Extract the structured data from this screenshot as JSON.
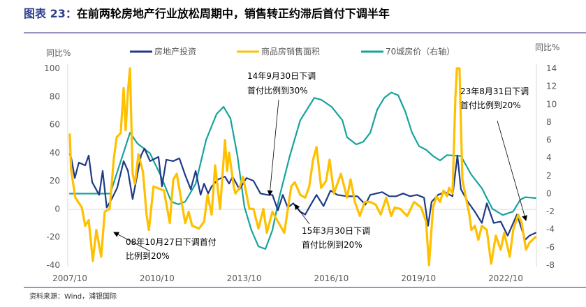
{
  "title": {
    "prefix": "图表 23：",
    "text": "在前两轮房地产行业放松周期中，销售转正约滞后首付下调半年"
  },
  "source": "资料来源：Wind，浦银国际",
  "colors": {
    "investment": "#1f3a86",
    "sales": "#ffc000",
    "price": "#17a39b",
    "title_prefix": "#2e3f8f",
    "rule": "#7b6fae"
  },
  "chart_data": {
    "type": "line",
    "title": "在前两轮房地产行业放松周期中，销售转正约滞后首付下调半年",
    "ylabel": "同比%",
    "ylabel_right": "同比%",
    "ylim": [
      -40,
      100
    ],
    "ylim_right": [
      -8,
      14
    ],
    "xlim": [
      2007.75,
      2023.85
    ],
    "xticks": [
      {
        "x": 2007.75,
        "label": "2007/10"
      },
      {
        "x": 2010.75,
        "label": "2010/10"
      },
      {
        "x": 2013.75,
        "label": "2013/10"
      },
      {
        "x": 2016.75,
        "label": "2016/10"
      },
      {
        "x": 2019.75,
        "label": "2019/10"
      },
      {
        "x": 2022.75,
        "label": "2022/10"
      }
    ],
    "yticks": [
      "100",
      "80",
      "60",
      "40",
      "20",
      "0",
      "-20",
      "-40"
    ],
    "yticks_right": [
      "14",
      "12",
      "10",
      "8",
      "6",
      "4",
      "2",
      "0",
      "-2",
      "-4",
      "-6",
      "-8"
    ],
    "legend_position": "top",
    "series": [
      {
        "name": "房地产投资",
        "axis": "left",
        "color": "#1f3a86",
        "points": [
          [
            2007.75,
            39
          ],
          [
            2007.8,
            36
          ],
          [
            2007.92,
            22
          ],
          [
            2008.06,
            33
          ],
          [
            2008.28,
            31
          ],
          [
            2008.4,
            38
          ],
          [
            2008.52,
            19
          ],
          [
            2008.76,
            10
          ],
          [
            2008.88,
            27
          ],
          [
            2009.02,
            1
          ],
          [
            2009.19,
            7
          ],
          [
            2009.38,
            15
          ],
          [
            2009.6,
            34
          ],
          [
            2009.75,
            27
          ],
          [
            2009.91,
            7
          ],
          [
            2010.2,
            38
          ],
          [
            2010.32,
            43
          ],
          [
            2010.51,
            34
          ],
          [
            2010.8,
            37
          ],
          [
            2010.92,
            16
          ],
          [
            2011.07,
            35
          ],
          [
            2011.31,
            34
          ],
          [
            2011.52,
            36
          ],
          [
            2011.72,
            24
          ],
          [
            2011.91,
            14
          ],
          [
            2012.08,
            27
          ],
          [
            2012.25,
            10
          ],
          [
            2012.37,
            18
          ],
          [
            2012.51,
            11
          ],
          [
            2012.63,
            16
          ],
          [
            2012.85,
            21
          ],
          [
            2013.09,
            23
          ],
          [
            2013.23,
            18
          ],
          [
            2013.35,
            23
          ],
          [
            2013.59,
            14
          ],
          [
            2013.83,
            22
          ],
          [
            2014.07,
            20
          ],
          [
            2014.31,
            11
          ],
          [
            2014.55,
            10
          ],
          [
            2014.72,
            10
          ],
          [
            2014.91,
            -1
          ],
          [
            2015.08,
            10
          ],
          [
            2015.25,
            1
          ],
          [
            2015.44,
            4
          ],
          [
            2015.68,
            -2
          ],
          [
            2015.85,
            -4
          ],
          [
            2016.04,
            3
          ],
          [
            2016.24,
            10
          ],
          [
            2016.48,
            2
          ],
          [
            2016.72,
            13
          ],
          [
            2016.96,
            10
          ],
          [
            2017.29,
            9
          ],
          [
            2017.65,
            9
          ],
          [
            2017.92,
            3
          ],
          [
            2018.09,
            10
          ],
          [
            2018.5,
            12
          ],
          [
            2018.74,
            9
          ],
          [
            2018.98,
            9
          ],
          [
            2019.22,
            11
          ],
          [
            2019.46,
            9
          ],
          [
            2019.7,
            10
          ],
          [
            2019.94,
            8
          ],
          [
            2020.08,
            -12
          ],
          [
            2020.2,
            5
          ],
          [
            2020.42,
            10
          ],
          [
            2020.66,
            12
          ],
          [
            2020.92,
            9
          ],
          [
            2021.09,
            38
          ],
          [
            2021.21,
            14
          ],
          [
            2021.45,
            5
          ],
          [
            2021.69,
            -2
          ],
          [
            2021.93,
            -10
          ],
          [
            2022.1,
            4
          ],
          [
            2022.34,
            -10
          ],
          [
            2022.58,
            -9
          ],
          [
            2022.82,
            -19
          ],
          [
            2023.14,
            -4
          ],
          [
            2023.42,
            -22
          ],
          [
            2023.57,
            -19
          ],
          [
            2023.78,
            -17
          ]
        ]
      },
      {
        "name": "商品房销售面积",
        "axis": "left",
        "color": "#ffc000",
        "points": [
          [
            2007.75,
            53
          ],
          [
            2007.79,
            28
          ],
          [
            2007.94,
            8
          ],
          [
            2008.16,
            1
          ],
          [
            2008.28,
            -12
          ],
          [
            2008.4,
            -8
          ],
          [
            2008.54,
            -37
          ],
          [
            2008.66,
            -15
          ],
          [
            2008.83,
            -34
          ],
          [
            2008.95,
            -2
          ],
          [
            2009.12,
            0
          ],
          [
            2009.26,
            35
          ],
          [
            2009.36,
            51
          ],
          [
            2009.5,
            54
          ],
          [
            2009.6,
            86
          ],
          [
            2009.67,
            56
          ],
          [
            2009.75,
            84
          ],
          [
            2009.82,
            100
          ],
          [
            2009.91,
            25
          ],
          [
            2009.99,
            18
          ],
          [
            2010.11,
            39
          ],
          [
            2010.27,
            26
          ],
          [
            2010.39,
            -4
          ],
          [
            2010.47,
            -15
          ],
          [
            2010.63,
            16
          ],
          [
            2010.99,
            13
          ],
          [
            2011.19,
            -10
          ],
          [
            2011.31,
            21
          ],
          [
            2011.43,
            25
          ],
          [
            2011.72,
            -10
          ],
          [
            2011.84,
            -2
          ],
          [
            2011.96,
            -12
          ],
          [
            2012.2,
            -14
          ],
          [
            2012.37,
            -9
          ],
          [
            2012.49,
            10
          ],
          [
            2012.63,
            -4
          ],
          [
            2012.75,
            31
          ],
          [
            2012.92,
            0
          ],
          [
            2013.09,
            49
          ],
          [
            2013.16,
            27
          ],
          [
            2013.23,
            40
          ],
          [
            2013.4,
            15
          ],
          [
            2013.45,
            11
          ],
          [
            2013.59,
            15
          ],
          [
            2013.71,
            23
          ],
          [
            2013.93,
            0
          ],
          [
            2014.07,
            0
          ],
          [
            2014.24,
            -14
          ],
          [
            2014.41,
            0
          ],
          [
            2014.53,
            -17
          ],
          [
            2014.72,
            -2
          ],
          [
            2014.91,
            -9
          ],
          [
            2015.13,
            -17
          ],
          [
            2015.37,
            16
          ],
          [
            2015.49,
            19
          ],
          [
            2015.68,
            10
          ],
          [
            2015.85,
            8
          ],
          [
            2015.99,
            16
          ],
          [
            2016.12,
            35
          ],
          [
            2016.24,
            44
          ],
          [
            2016.4,
            15
          ],
          [
            2016.57,
            20
          ],
          [
            2016.69,
            35
          ],
          [
            2016.84,
            11
          ],
          [
            2017.08,
            25
          ],
          [
            2017.29,
            8
          ],
          [
            2017.41,
            21
          ],
          [
            2017.56,
            5
          ],
          [
            2017.73,
            -5
          ],
          [
            2017.9,
            5
          ],
          [
            2018.09,
            5
          ],
          [
            2018.28,
            3
          ],
          [
            2018.45,
            -4
          ],
          [
            2018.64,
            8
          ],
          [
            2018.81,
            -5
          ],
          [
            2018.93,
            1
          ],
          [
            2019.12,
            0
          ],
          [
            2019.36,
            -5
          ],
          [
            2019.6,
            5
          ],
          [
            2019.84,
            1
          ],
          [
            2020.01,
            -9
          ],
          [
            2020.11,
            -40
          ],
          [
            2020.25,
            1
          ],
          [
            2020.37,
            9
          ],
          [
            2020.49,
            5
          ],
          [
            2020.61,
            13
          ],
          [
            2020.73,
            9
          ],
          [
            2020.8,
            15
          ],
          [
            2020.92,
            11
          ],
          [
            2021.02,
            79
          ],
          [
            2021.07,
            100
          ],
          [
            2021.16,
            100
          ],
          [
            2021.26,
            21
          ],
          [
            2021.38,
            8
          ],
          [
            2021.5,
            -4
          ],
          [
            2021.57,
            -15
          ],
          [
            2021.69,
            -12
          ],
          [
            2021.81,
            -22
          ],
          [
            2021.93,
            -12
          ],
          [
            2022.1,
            -15
          ],
          [
            2022.25,
            -39
          ],
          [
            2022.41,
            -19
          ],
          [
            2022.58,
            -29
          ],
          [
            2022.7,
            -17
          ],
          [
            2022.89,
            -34
          ],
          [
            2023.01,
            -15
          ],
          [
            2023.18,
            -4
          ],
          [
            2023.3,
            -10
          ],
          [
            2023.45,
            -29
          ],
          [
            2023.57,
            -24
          ],
          [
            2023.78,
            -20
          ]
        ]
      },
      {
        "name": "70城房价（右轴）",
        "axis": "right",
        "color": "#17a39b",
        "points": [
          [
            2007.75,
            0
          ],
          [
            2009.14,
            0
          ],
          [
            2009.82,
            6.8
          ],
          [
            2010.08,
            5.6
          ],
          [
            2010.51,
            4.5
          ],
          [
            2010.88,
            2
          ],
          [
            2011.24,
            -0.9
          ],
          [
            2011.48,
            -1.2
          ],
          [
            2011.72,
            -0.9
          ],
          [
            2012.08,
            1.1
          ],
          [
            2012.44,
            6
          ],
          [
            2012.8,
            8.9
          ],
          [
            2013.04,
            9.7
          ],
          [
            2013.28,
            8.4
          ],
          [
            2013.52,
            4.2
          ],
          [
            2013.76,
            -1.5
          ],
          [
            2014.0,
            -4.1
          ],
          [
            2014.24,
            -5.9
          ],
          [
            2014.48,
            -6.2
          ],
          [
            2014.72,
            -4.1
          ],
          [
            2014.96,
            -0.4
          ],
          [
            2015.32,
            4.2
          ],
          [
            2015.68,
            8.2
          ],
          [
            2016.16,
            10.7
          ],
          [
            2016.4,
            10.5
          ],
          [
            2016.76,
            9.7
          ],
          [
            2017.13,
            8.2
          ],
          [
            2017.29,
            6.3
          ],
          [
            2017.61,
            5.5
          ],
          [
            2017.85,
            5.8
          ],
          [
            2018.09,
            6.8
          ],
          [
            2018.33,
            9.4
          ],
          [
            2018.57,
            10.7
          ],
          [
            2018.81,
            11.3
          ],
          [
            2019.05,
            11
          ],
          [
            2019.29,
            9.2
          ],
          [
            2019.53,
            6.8
          ],
          [
            2019.77,
            5.3
          ],
          [
            2020.01,
            4.9
          ],
          [
            2020.25,
            4.2
          ],
          [
            2020.49,
            3.7
          ],
          [
            2020.73,
            4.3
          ],
          [
            2021.21,
            4.2
          ],
          [
            2021.57,
            2.1
          ],
          [
            2021.93,
            0.6
          ],
          [
            2022.29,
            -1.7
          ],
          [
            2022.65,
            -2.4
          ],
          [
            2023.01,
            -2
          ],
          [
            2023.25,
            -0.7
          ],
          [
            2023.42,
            -0.4
          ],
          [
            2023.78,
            -0.5
          ]
        ]
      }
    ],
    "annotations": [
      {
        "line1": "08年10月27日下调首付",
        "line2": "比例到20%"
      },
      {
        "line1": "14年9月30日下调",
        "line2": "首付比例到30%"
      },
      {
        "line1": "15年3月30日下调",
        "line2": "首付比例到20%"
      },
      {
        "line1": "23年8月31日下调",
        "line2": "首付比例到20%"
      }
    ]
  }
}
